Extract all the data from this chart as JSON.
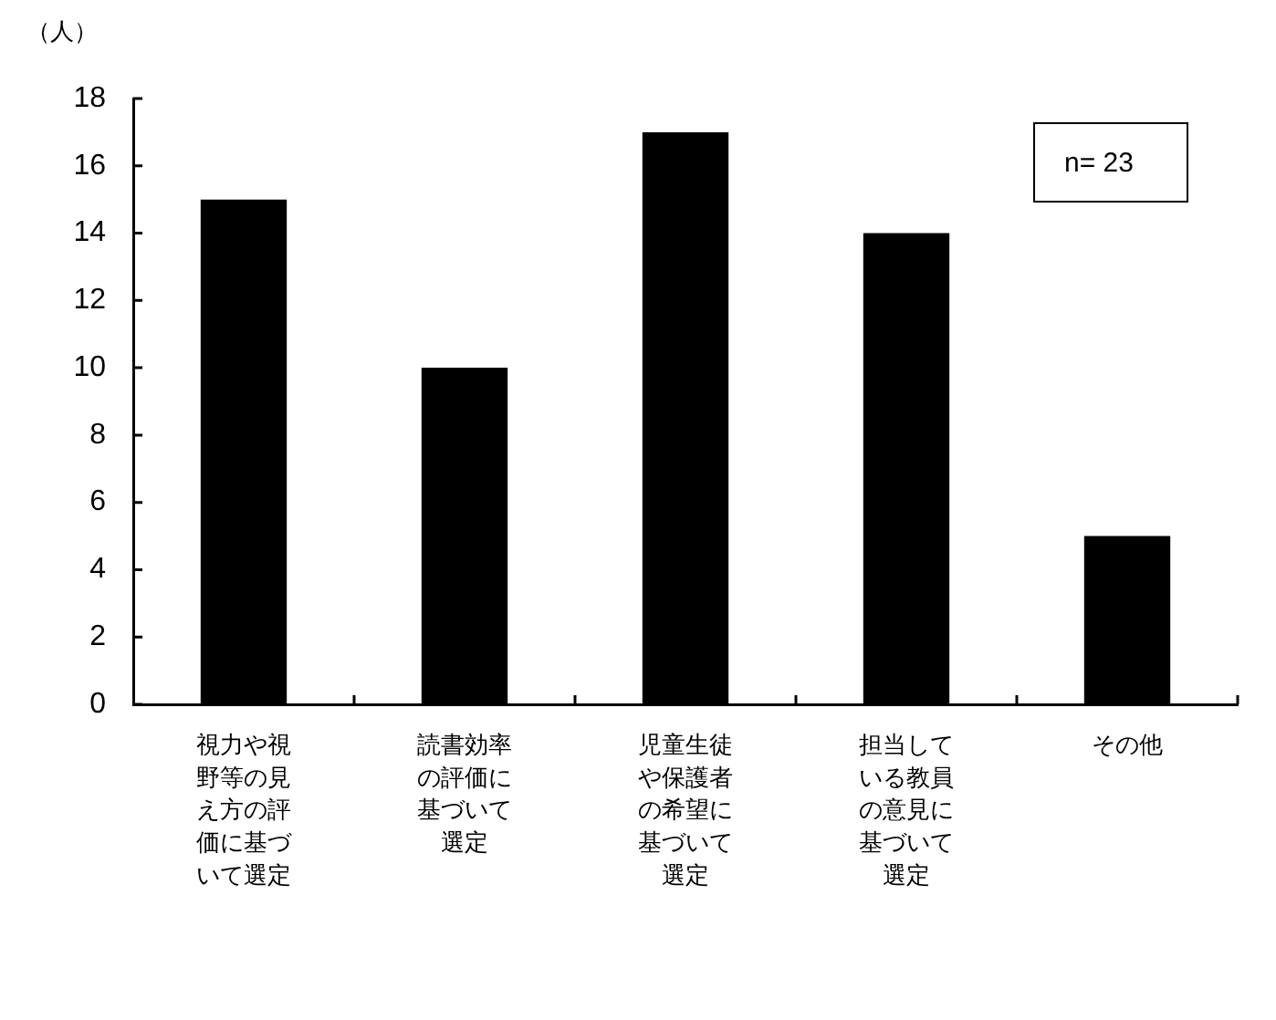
{
  "chart_data": {
    "type": "bar",
    "ylabel": "（人）",
    "categories": [
      "視力や視野等の見え方の評価に基づいて選定",
      "読書効率の評価に基づいて選定",
      "児童生徒や保護者の希望に基づいて選定",
      "担当している教員の意見に基づいて選定",
      "その他"
    ],
    "values": [
      15,
      10,
      17,
      14,
      5
    ],
    "color": "#000000",
    "ylim": [
      0,
      18
    ],
    "yticks": [
      0,
      2,
      4,
      6,
      8,
      10,
      12,
      14,
      16,
      18
    ],
    "annotations": [
      "n= 23"
    ]
  }
}
